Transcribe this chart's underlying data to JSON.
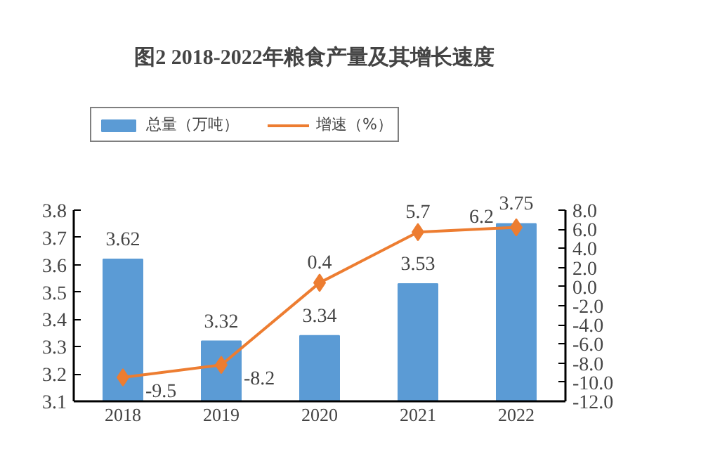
{
  "chart_data": {
    "type": "bar",
    "title": "图2   2018-2022年粮食产量及其增长速度",
    "categories": [
      "2018",
      "2019",
      "2020",
      "2021",
      "2022"
    ],
    "series": [
      {
        "name": "总量（万吨）",
        "color": "#5b9bd5",
        "values": [
          3.62,
          3.32,
          3.34,
          3.53,
          3.75
        ]
      },
      {
        "name": "增速（%）",
        "type": "line",
        "axis": "y2",
        "color": "#ed7d31",
        "marker": "diamond",
        "values": [
          -9.5,
          -8.2,
          0.4,
          5.7,
          6.2
        ]
      }
    ],
    "ylim": [
      3.1,
      3.8
    ],
    "yticks": [
      3.1,
      3.2,
      3.3,
      3.4,
      3.5,
      3.6,
      3.7,
      3.8
    ],
    "y2lim": [
      -12,
      8
    ],
    "y2ticks": [
      {
        "value": -12,
        "label": "-12.0"
      },
      {
        "value": -10,
        "label": "-10.0"
      },
      {
        "value": -8,
        "label": "-8.0"
      },
      {
        "value": -6,
        "label": "-6.0"
      },
      {
        "value": -4,
        "label": "-4.0"
      },
      {
        "value": -2,
        "label": "-2.0"
      },
      {
        "value": 0,
        "label": "0.0"
      },
      {
        "value": 2,
        "label": "2.0"
      },
      {
        "value": 4,
        "label": "4.0"
      },
      {
        "value": 6,
        "label": "6.0"
      },
      {
        "value": 8,
        "label": "8.0"
      }
    ],
    "data_labels": true,
    "grid": false,
    "legend": "top left"
  }
}
